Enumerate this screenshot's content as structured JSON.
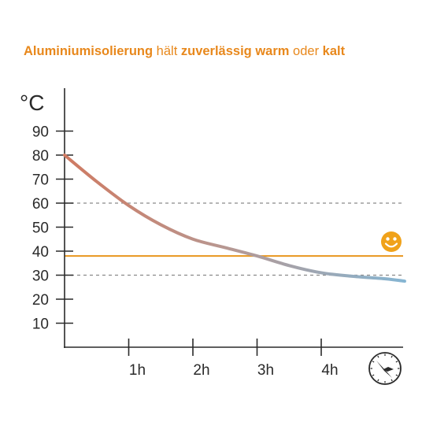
{
  "title": {
    "segments": [
      {
        "text": "Aluminiumisolierung",
        "bold": true
      },
      {
        "text": " hält ",
        "bold": false
      },
      {
        "text": "zuverlässig warm",
        "bold": true
      },
      {
        "text": " oder ",
        "bold": false
      },
      {
        "text": "kalt",
        "bold": true
      }
    ]
  },
  "colors": {
    "title": "#e8881c",
    "axis": "#2a2a2a",
    "reference_line": "#e8961e",
    "dashed_lines": "#8a8a8a",
    "curve_warm": "#cf7a62",
    "curve_cold": "#86b5d2",
    "smiley": "#f0a21a"
  },
  "icons": [
    "clock-icon",
    "smiley-icon"
  ],
  "chart_data": {
    "type": "line",
    "title": "Aluminiumisolierung hält zuverlässig warm oder kalt",
    "ylabel": "°C",
    "xlabel": "",
    "x_unit": "h",
    "ylim": [
      0,
      105
    ],
    "xlim": [
      0,
      5.3
    ],
    "yticks": [
      10,
      20,
      30,
      40,
      50,
      60,
      70,
      80,
      90
    ],
    "ytick_labels": [
      "10",
      "20",
      "30",
      "40",
      "50",
      "60",
      "70",
      "80",
      "90"
    ],
    "xticks": [
      1,
      2,
      3,
      4
    ],
    "xtick_labels": [
      "1h",
      "2h",
      "3h",
      "4h"
    ],
    "series": [
      {
        "x": [
          0,
          0.5,
          1,
          1.5,
          2,
          2.5,
          3,
          3.5,
          4,
          4.5,
          5,
          5.3
        ],
        "values": [
          80,
          69,
          59,
          51,
          45,
          41.5,
          38,
          34,
          31,
          29.5,
          28.5,
          27.5
        ]
      }
    ],
    "reference_lines": [
      {
        "y": 38,
        "style": "solid",
        "color": "#e8961e"
      },
      {
        "y": 60,
        "style": "dashed",
        "color": "#8a8a8a"
      },
      {
        "y": 30,
        "style": "dashed",
        "color": "#8a8a8a"
      }
    ],
    "grid": false,
    "legend": "none"
  }
}
